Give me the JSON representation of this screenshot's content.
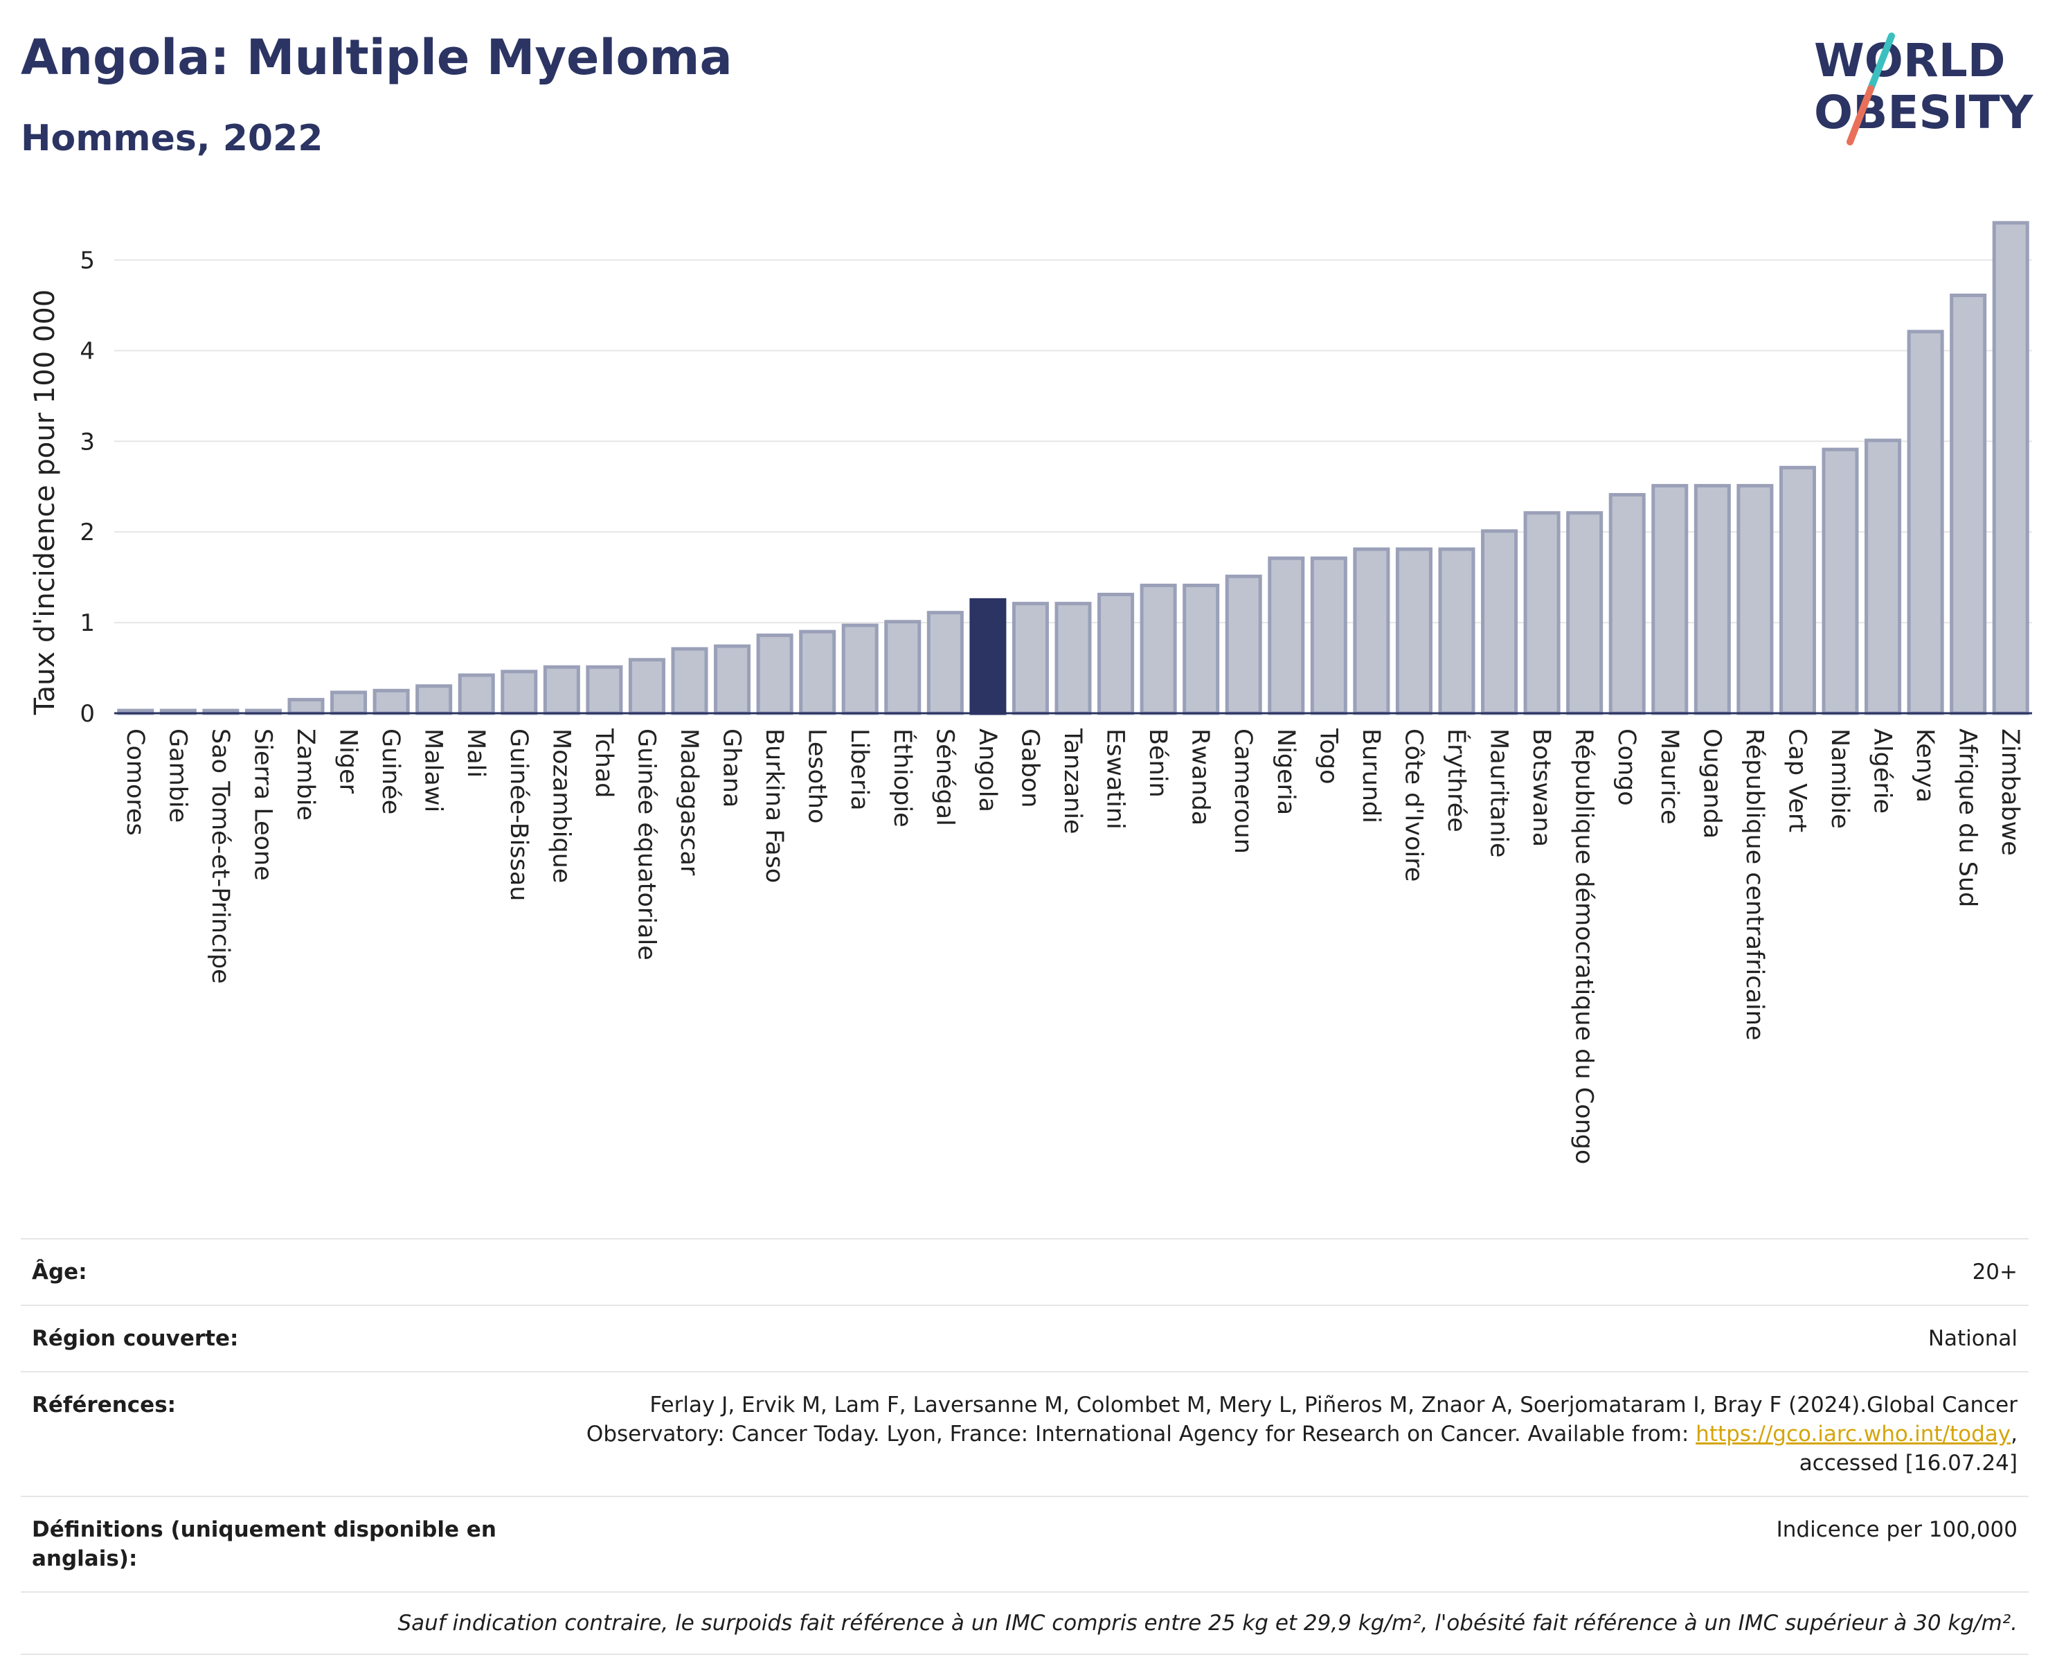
{
  "header": {
    "title": "Angola: Multiple Myeloma",
    "subtitle": "Hommes, 2022",
    "logo_line1": "WORLD",
    "logo_line2": "OBESITY"
  },
  "colors": {
    "highlight_bar": "#2b3463",
    "other_bar_fill": "#bfc3d0",
    "other_bar_stroke": "#9aa0b8",
    "text_title": "#2b3463",
    "logo_teal": "#3cbfbf",
    "logo_coral": "#e8705a"
  },
  "chart_data": {
    "type": "bar",
    "ylabel": "Taux d'incidence pour 100 000",
    "xlabel": "",
    "ylim": [
      0,
      5.5
    ],
    "yticks": [
      0,
      1,
      2,
      3,
      4,
      5
    ],
    "grid": true,
    "highlight": "Angola",
    "categories": [
      "Comores",
      "Gambie",
      "Sao Tomé-et-Principe",
      "Sierra Leone",
      "Zambie",
      "Niger",
      "Guinée",
      "Malawi",
      "Mali",
      "Guinée-Bissau",
      "Mozambique",
      "Tchad",
      "Guinée équatoriale",
      "Madagascar",
      "Ghana",
      "Burkina Faso",
      "Lesotho",
      "Liberia",
      "Éthiopie",
      "Sénégal",
      "Angola",
      "Gabon",
      "Tanzanie",
      "Eswatini",
      "Bénin",
      "Rwanda",
      "Cameroun",
      "Nigeria",
      "Togo",
      "Burundi",
      "Côte d'Ivoire",
      "Érythrée",
      "Mauritanie",
      "Botswana",
      "République démocratique du Congo",
      "Congo",
      "Maurice",
      "Ouganda",
      "République centrafricaine",
      "Cap Vert",
      "Namibie",
      "Algérie",
      "Kenya",
      "Afrique du Sud",
      "Zimbabwe"
    ],
    "values": [
      0.03,
      0.03,
      0.03,
      0.03,
      0.15,
      0.23,
      0.25,
      0.3,
      0.42,
      0.46,
      0.51,
      0.51,
      0.59,
      0.71,
      0.74,
      0.86,
      0.9,
      0.97,
      1.01,
      1.11,
      1.25,
      1.21,
      1.21,
      1.31,
      1.41,
      1.41,
      1.51,
      1.71,
      1.71,
      1.81,
      1.81,
      1.81,
      2.01,
      2.21,
      2.21,
      2.41,
      2.51,
      2.51,
      2.51,
      2.71,
      2.91,
      3.01,
      4.21,
      4.61,
      5.41
    ]
  },
  "meta": {
    "age_label": "Âge:",
    "age_value": "20+",
    "region_label": "Région couverte:",
    "region_value": "National",
    "refs_label": "Références:",
    "refs_text": "Ferlay J, Ervik M, Lam F, Laversanne M, Colombet M, Mery L, Piñeros M, Znaor A, Soerjomataram I, Bray F (2024).Global Cancer Observatory: Cancer Today. Lyon, France: International Agency for Research on Cancer. Available from:",
    "refs_link": "https://gco.iarc.who.int/today",
    "refs_tail": ", accessed [16.07.24]",
    "defs_label": "Définitions (uniquement disponible en anglais):",
    "defs_value": "Indicence per 100,000",
    "note": "Sauf indication contraire, le surpoids fait référence à un IMC compris entre 25 kg et 29,9 kg/m², l'obésité fait référence à un IMC supérieur à 30 kg/m²."
  }
}
